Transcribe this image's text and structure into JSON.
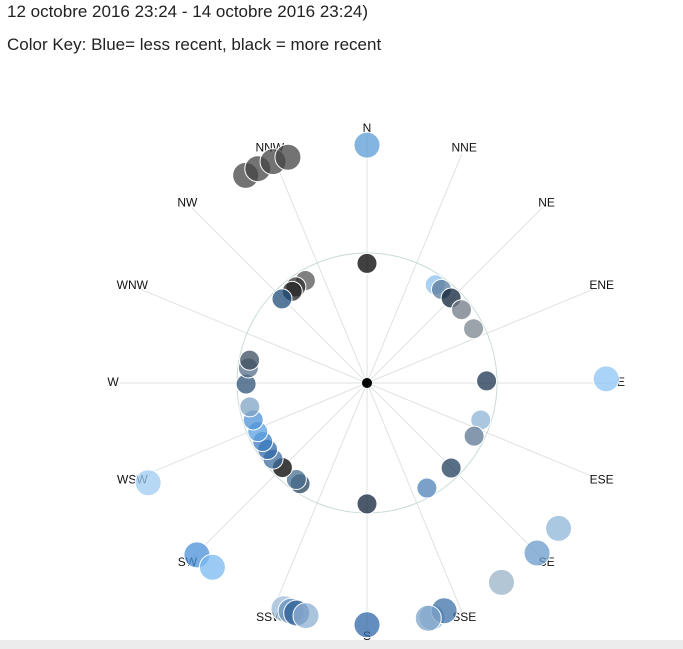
{
  "chart_data": {
    "type": "polar-scatter",
    "title": "12 octobre 2016 23:24 - 14 octobre 2016 23:24)",
    "subtitle": "Color Key: Blue= less recent, black = more recent",
    "categories": [
      "N",
      "NNE",
      "NE",
      "ENE",
      "E",
      "ESE",
      "SE",
      "SSE",
      "S",
      "SSW",
      "SW",
      "WSW",
      "W",
      "WNW",
      "NW",
      "NNW"
    ],
    "rlim": [
      0,
      2
    ],
    "rticks": [
      1
    ],
    "theta": [
      0,
      0,
      329.7,
      333,
      337,
      340.7,
      329,
      323.5,
      320.8,
      314.7,
      34.8,
      38.5,
      44.7,
      52.2,
      63,
      89,
      89,
      108,
      116.4,
      135.3,
      150.3,
      127.2,
      135,
      146,
      164.5,
      161.3,
      165.4,
      180,
      180,
      200.2,
      198.4,
      197,
      194.7,
      213.6,
      216.2,
      225,
      231,
      236.2,
      240.7,
      246,
      252,
      258.5,
      269.5,
      277.2,
      281,
      224.7,
      220,
      245.5
    ],
    "r": [
      1.83,
      0.92,
      1.85,
      1.85,
      1.85,
      1.84,
      0.92,
      0.92,
      0.91,
      0.92,
      0.92,
      0.92,
      0.92,
      0.92,
      0.92,
      1.84,
      0.92,
      0.92,
      0.92,
      0.92,
      0.93,
      1.85,
      1.85,
      1.85,
      1.87,
      1.85,
      1.87,
      1.86,
      0.93,
      1.85,
      1.85,
      1.85,
      1.85,
      0.93,
      0.92,
      0.92,
      0.93,
      0.92,
      0.92,
      0.92,
      0.92,
      0.92,
      0.93,
      0.92,
      0.92,
      1.86,
      1.85,
      1.85
    ],
    "colors": [
      "#5b9bd5",
      "#000000",
      "#444444",
      "#444444",
      "#444444",
      "#444444",
      "#555555",
      "#333333",
      "#222222",
      "#1f4e79",
      "#8fc1ee",
      "#5a7a99",
      "#0d2238",
      "#707a85",
      "#7a848f",
      "#8cc6f5",
      "#1a3350",
      "#8fb4d6",
      "#5c7591",
      "#1f3d5c",
      "#4d82b8",
      "#8fb5d9",
      "#6b9bc9",
      "#9ab3c8",
      "#8fb2d1",
      "#3d72a8",
      "#7da3c9",
      "#2d67a6",
      "#0f2238",
      "#9cbbd8",
      "#6792bf",
      "#2c5f94",
      "#8fb0d3",
      "#24445f",
      "#4a6f90",
      "#000000",
      "#3c6d9c",
      "#2f6aa8",
      "#3a7cc0",
      "#5aa0e0",
      "#4f92d6",
      "#7fa3c4",
      "#2e5275",
      "#546e88",
      "#3b4c5e",
      "#4a90d9",
      "#7ab9f0",
      "#9dcbf2"
    ]
  }
}
